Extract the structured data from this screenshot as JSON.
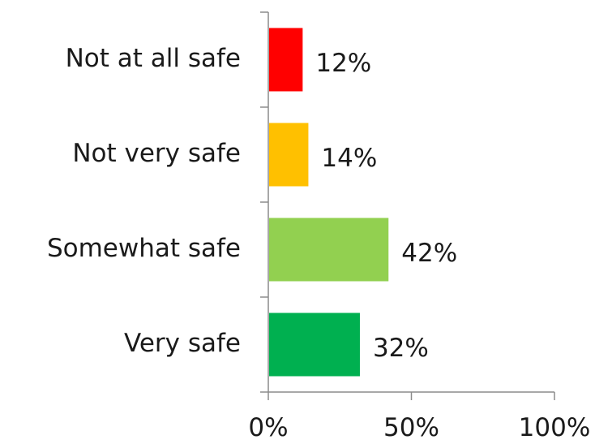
{
  "chart_data": {
    "type": "bar",
    "orientation": "horizontal",
    "categories": [
      "Not at all safe",
      "Not very safe",
      "Somewhat safe",
      "Very safe"
    ],
    "values": [
      12,
      14,
      42,
      32
    ],
    "value_labels": [
      "12%",
      "14%",
      "42%",
      "32%"
    ],
    "colors": [
      "#ff0000",
      "#ffc000",
      "#92d050",
      "#00b050"
    ],
    "xlim": [
      0,
      100
    ],
    "xticks": [
      0,
      50,
      100
    ],
    "xtick_labels": [
      "0%",
      "50%",
      "100%"
    ],
    "title": "",
    "xlabel": "",
    "ylabel": "",
    "grid": false,
    "legend": "none"
  }
}
